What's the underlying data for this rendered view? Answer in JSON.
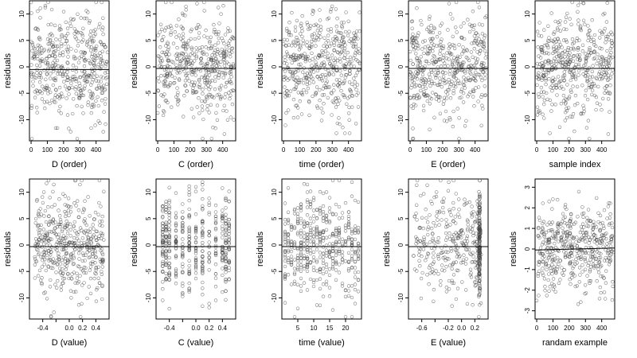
{
  "figure": {
    "colors": {
      "axis": "#000000",
      "point": "#444444",
      "ref_line": "#000000",
      "background": "#ffffff"
    }
  },
  "chart_data": [
    {
      "type": "scatter",
      "title": "",
      "xlabel": "D (order)",
      "ylabel": "residuals",
      "xlim": [
        -10,
        480
      ],
      "ylim": [
        -14,
        12.5
      ],
      "xticks": [
        0,
        100,
        200,
        300,
        400
      ],
      "xtick_labels": [
        "0",
        "100",
        "200",
        "300",
        "400"
      ],
      "yticks": [
        -10,
        -5,
        0,
        5,
        10
      ],
      "ytick_labels": [
        "-10",
        "-5",
        "0",
        "5",
        "10"
      ],
      "ref_line": {
        "y": -0.5,
        "y_end": -0.5
      },
      "distribution": {
        "n": 470,
        "x_kind": "uniform",
        "x_range": [
          0,
          470
        ],
        "y_sd": 4.8
      }
    },
    {
      "type": "scatter",
      "title": "",
      "xlabel": "C (order)",
      "ylabel": "residuals",
      "xlim": [
        -10,
        480
      ],
      "ylim": [
        -14,
        12.5
      ],
      "xticks": [
        0,
        100,
        200,
        300,
        400
      ],
      "xtick_labels": [
        "0",
        "100",
        "200",
        "300",
        "400"
      ],
      "yticks": [
        -10,
        -5,
        0,
        5,
        10
      ],
      "ytick_labels": [
        "-10",
        "-5",
        "0",
        "5",
        "10"
      ],
      "ref_line": {
        "y": -0.3,
        "y_end": -0.3
      },
      "distribution": {
        "n": 470,
        "x_kind": "uniform",
        "x_range": [
          0,
          470
        ],
        "y_sd": 4.8
      }
    },
    {
      "type": "scatter",
      "title": "",
      "xlabel": "time (order)",
      "ylabel": "residuals",
      "xlim": [
        -10,
        480
      ],
      "ylim": [
        -14,
        12.5
      ],
      "xticks": [
        0,
        100,
        200,
        300,
        400
      ],
      "xtick_labels": [
        "0",
        "100",
        "200",
        "300",
        "400"
      ],
      "yticks": [
        -10,
        -5,
        0,
        5,
        10
      ],
      "ytick_labels": [
        "-10",
        "-5",
        "0",
        "5",
        "10"
      ],
      "ref_line": {
        "y": -0.3,
        "y_end": -0.3
      },
      "distribution": {
        "n": 470,
        "x_kind": "uniform",
        "x_range": [
          0,
          470
        ],
        "y_sd": 4.8
      }
    },
    {
      "type": "scatter",
      "title": "",
      "xlabel": "E (order)",
      "ylabel": "residuals",
      "xlim": [
        -10,
        480
      ],
      "ylim": [
        -14,
        12.5
      ],
      "xticks": [
        0,
        100,
        200,
        300,
        400
      ],
      "xtick_labels": [
        "0",
        "100",
        "200",
        "300",
        "400"
      ],
      "yticks": [
        -10,
        -5,
        0,
        5,
        10
      ],
      "ytick_labels": [
        "-10",
        "-5",
        "0",
        "5",
        "10"
      ],
      "ref_line": {
        "y": -0.3,
        "y_end": -0.3
      },
      "distribution": {
        "n": 470,
        "x_kind": "uniform",
        "x_range": [
          0,
          470
        ],
        "y_sd": 4.8
      }
    },
    {
      "type": "scatter",
      "title": "",
      "xlabel": "sample index",
      "ylabel": "residuals",
      "xlim": [
        -10,
        480
      ],
      "ylim": [
        -14,
        12.5
      ],
      "xticks": [
        0,
        100,
        200,
        300,
        400
      ],
      "xtick_labels": [
        "0",
        "100",
        "200",
        "300",
        "400"
      ],
      "yticks": [
        -10,
        -5,
        0,
        5,
        10
      ],
      "ytick_labels": [
        "-10",
        "-5",
        "0",
        "5",
        "10"
      ],
      "ref_line": {
        "y": -0.3,
        "y_end": -0.3
      },
      "distribution": {
        "n": 470,
        "x_kind": "uniform",
        "x_range": [
          0,
          470
        ],
        "y_sd": 4.8
      }
    },
    {
      "type": "scatter",
      "title": "",
      "xlabel": "D (value)",
      "ylabel": "residuals",
      "xlim": [
        -0.6,
        0.6
      ],
      "ylim": [
        -14,
        12.5
      ],
      "xticks": [
        -0.4,
        -0.2,
        0.0,
        0.2,
        0.4
      ],
      "xtick_labels": [
        "-0.4",
        "",
        "0.0",
        "0.2",
        "0.4"
      ],
      "yticks": [
        -10,
        -5,
        0,
        5,
        10
      ],
      "ytick_labels": [
        "-10",
        "-5",
        "0",
        "5",
        "10"
      ],
      "ref_line": {
        "y": -0.3,
        "y_end": -0.3
      },
      "distribution": {
        "n": 470,
        "x_kind": "uniform",
        "x_range": [
          -0.52,
          0.52
        ],
        "y_sd": 4.8
      }
    },
    {
      "type": "scatter",
      "title": "",
      "xlabel": "C (value)",
      "ylabel": "residuals",
      "xlim": [
        -0.6,
        0.6
      ],
      "ylim": [
        -14,
        12.5
      ],
      "xticks": [
        -0.4,
        -0.2,
        0.0,
        0.2,
        0.4
      ],
      "xtick_labels": [
        "-0.4",
        "",
        "0.0",
        "0.2",
        "0.4"
      ],
      "yticks": [
        -10,
        -5,
        0,
        5,
        10
      ],
      "ytick_labels": [
        "-10",
        "-5",
        "0",
        "5",
        "10"
      ],
      "ref_line": {
        "y": -0.3,
        "y_end": -0.3
      },
      "distribution": {
        "n": 470,
        "x_kind": "discrete",
        "levels": [
          -0.5,
          -0.45,
          -0.4,
          -0.3,
          -0.2,
          -0.1,
          0.0,
          0.1,
          0.2,
          0.3,
          0.4,
          0.45,
          0.5
        ],
        "y_sd": 4.8
      }
    },
    {
      "type": "scatter",
      "title": "",
      "xlabel": "time (value)",
      "ylabel": "residuals",
      "xlim": [
        0,
        25
      ],
      "ylim": [
        -14,
        12.5
      ],
      "xticks": [
        5,
        10,
        15,
        20
      ],
      "xtick_labels": [
        "5",
        "10",
        "15",
        "20"
      ],
      "yticks": [
        -10,
        -5,
        0,
        5,
        10
      ],
      "ytick_labels": [
        "-10",
        "-5",
        "0",
        "5",
        "10"
      ],
      "ref_line": {
        "y": -0.3,
        "y_end": -0.3
      },
      "distribution": {
        "n": 470,
        "x_kind": "discrete",
        "levels_range": [
          1,
          24
        ],
        "y_sd": 4.8
      }
    },
    {
      "type": "scatter",
      "title": "",
      "xlabel": "E (value)",
      "ylabel": "residuals",
      "xlim": [
        -0.8,
        0.4
      ],
      "ylim": [
        -14,
        12.5
      ],
      "xticks": [
        -0.6,
        -0.4,
        -0.2,
        0.0,
        0.2
      ],
      "xtick_labels": [
        "-0.6",
        "",
        "-0.2",
        "0.0",
        "0.2"
      ],
      "yticks": [
        -10,
        -5,
        0,
        5,
        10
      ],
      "ytick_labels": [
        "-10",
        "-5",
        "0",
        "5",
        "10"
      ],
      "ref_line": {
        "y": -0.3,
        "y_end": -0.3
      },
      "distribution": {
        "n": 470,
        "x_kind": "skewed",
        "x_range": [
          -0.75,
          0.3
        ],
        "cluster_x": 0.27,
        "cluster_share": 0.35,
        "y_sd": 4.8
      }
    },
    {
      "type": "scatter",
      "title": "",
      "xlabel": "randam example",
      "ylabel": "residuals",
      "xlim": [
        -10,
        480
      ],
      "ylim": [
        -3.4,
        3.4
      ],
      "xticks": [
        0,
        100,
        200,
        300,
        400
      ],
      "xtick_labels": [
        "0",
        "100",
        "200",
        "300",
        "400"
      ],
      "yticks": [
        -3,
        -2,
        -1,
        0,
        1,
        2,
        3
      ],
      "ytick_labels": [
        "-3",
        "-2",
        "-1",
        "0",
        "1",
        "2",
        "3"
      ],
      "ref_line": {
        "y": -0.05,
        "y_end": 0.05
      },
      "distribution": {
        "n": 470,
        "x_kind": "uniform",
        "x_range": [
          0,
          470
        ],
        "y_sd": 1.0
      }
    }
  ]
}
